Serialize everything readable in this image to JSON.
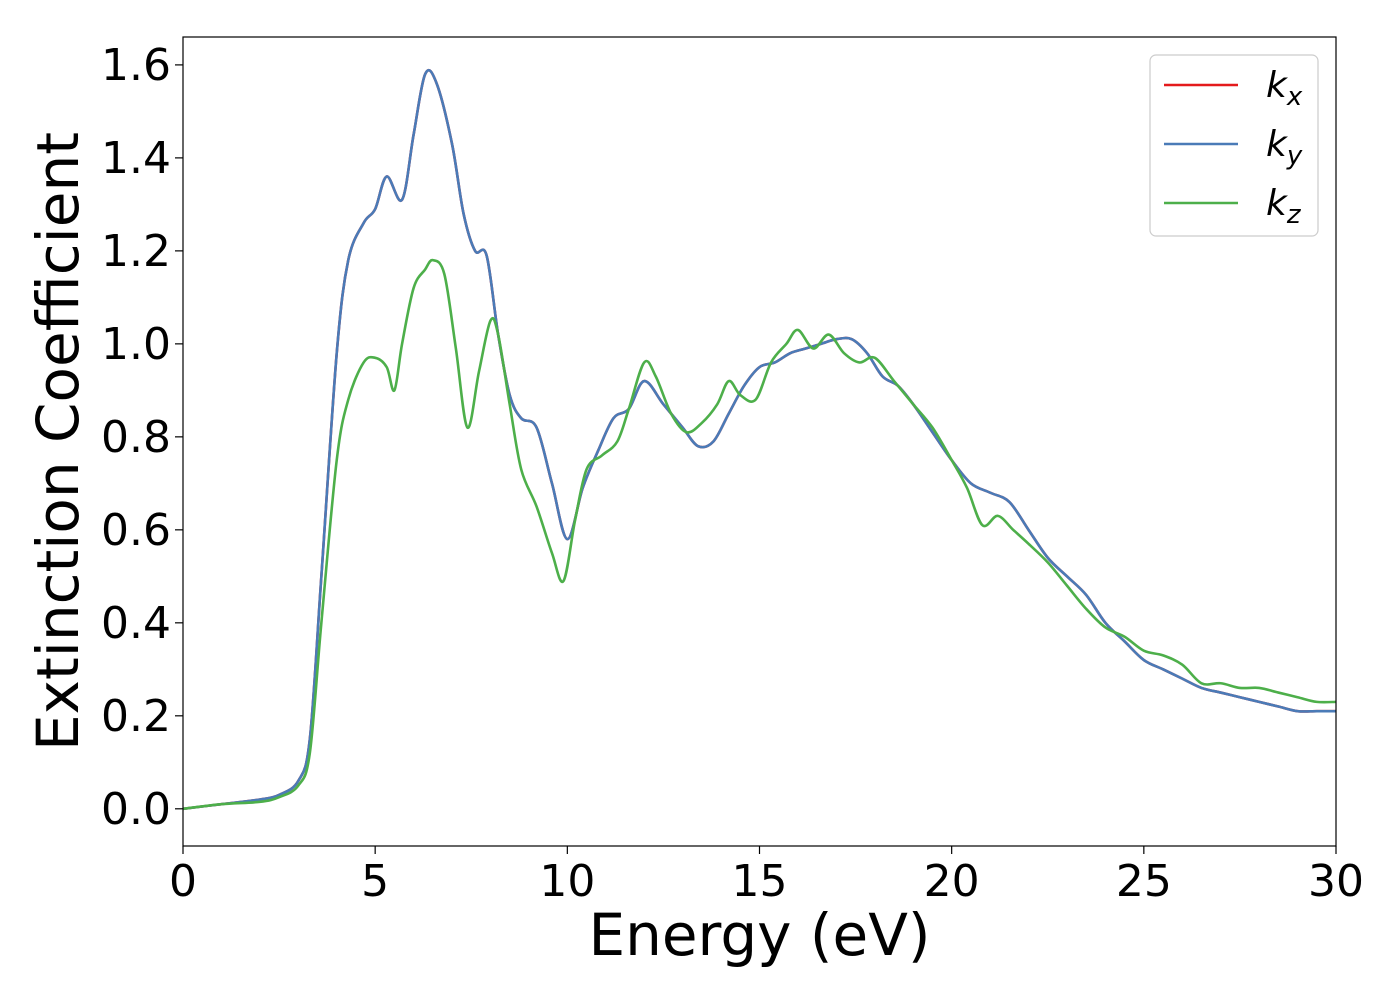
{
  "chart_data": {
    "type": "line",
    "title": "",
    "xlabel": "Energy (eV)",
    "ylabel": "Extinction Coefficient",
    "xlim": [
      0,
      30
    ],
    "ylim": [
      -0.08,
      1.66
    ],
    "xticks": [
      0,
      5,
      10,
      15,
      20,
      25,
      30
    ],
    "xtick_labels": [
      "0",
      "5",
      "10",
      "15",
      "20",
      "25",
      "30"
    ],
    "yticks": [
      0.0,
      0.2,
      0.4,
      0.6,
      0.8,
      1.0,
      1.2,
      1.4,
      1.6
    ],
    "ytick_labels": [
      "0.0",
      "0.2",
      "0.4",
      "0.6",
      "0.8",
      "1.0",
      "1.2",
      "1.4",
      "1.6"
    ],
    "grid": false,
    "legend": "top-right",
    "series": [
      {
        "name": "k",
        "subscript": "x",
        "color": "#e41a1c",
        "x": [
          0,
          1,
          2,
          2.5,
          3,
          3.3,
          3.6,
          4,
          4.3,
          4.7,
          5.0,
          5.3,
          5.7,
          6.0,
          6.3,
          6.6,
          7.0,
          7.3,
          7.6,
          7.9,
          8.2,
          8.5,
          8.8,
          9.2,
          9.6,
          10.0,
          10.4,
          10.8,
          11.2,
          11.6,
          12.0,
          12.5,
          13.0,
          13.4,
          13.8,
          14.2,
          14.6,
          15.0,
          15.4,
          15.8,
          16.2,
          16.6,
          17.0,
          17.4,
          17.8,
          18.2,
          18.6,
          19.0,
          19.5,
          20.0,
          20.5,
          21.0,
          21.5,
          22.0,
          22.5,
          23.0,
          23.5,
          24.0,
          24.5,
          25.0,
          25.5,
          26.0,
          26.5,
          27.0,
          27.5,
          28.0,
          28.5,
          29.0,
          29.5,
          30.0
        ],
        "y": [
          0.0,
          0.01,
          0.02,
          0.03,
          0.06,
          0.15,
          0.5,
          0.98,
          1.18,
          1.26,
          1.29,
          1.36,
          1.31,
          1.45,
          1.58,
          1.56,
          1.43,
          1.28,
          1.2,
          1.19,
          1.02,
          0.89,
          0.84,
          0.82,
          0.7,
          0.58,
          0.69,
          0.77,
          0.84,
          0.86,
          0.92,
          0.87,
          0.82,
          0.78,
          0.79,
          0.85,
          0.91,
          0.95,
          0.96,
          0.98,
          0.99,
          1.0,
          1.01,
          1.01,
          0.98,
          0.93,
          0.91,
          0.87,
          0.81,
          0.75,
          0.7,
          0.68,
          0.66,
          0.6,
          0.54,
          0.5,
          0.46,
          0.4,
          0.36,
          0.32,
          0.3,
          0.28,
          0.26,
          0.25,
          0.24,
          0.23,
          0.22,
          0.21,
          0.21,
          0.21
        ]
      },
      {
        "name": "k",
        "subscript": "y",
        "color": "#4a7bb7",
        "x": [
          0,
          1,
          2,
          2.5,
          3,
          3.3,
          3.6,
          4,
          4.3,
          4.7,
          5.0,
          5.3,
          5.7,
          6.0,
          6.3,
          6.6,
          7.0,
          7.3,
          7.6,
          7.9,
          8.2,
          8.5,
          8.8,
          9.2,
          9.6,
          10.0,
          10.4,
          10.8,
          11.2,
          11.6,
          12.0,
          12.5,
          13.0,
          13.4,
          13.8,
          14.2,
          14.6,
          15.0,
          15.4,
          15.8,
          16.2,
          16.6,
          17.0,
          17.4,
          17.8,
          18.2,
          18.6,
          19.0,
          19.5,
          20.0,
          20.5,
          21.0,
          21.5,
          22.0,
          22.5,
          23.0,
          23.5,
          24.0,
          24.5,
          25.0,
          25.5,
          26.0,
          26.5,
          27.0,
          27.5,
          28.0,
          28.5,
          29.0,
          29.5,
          30.0
        ],
        "y": [
          0.0,
          0.01,
          0.02,
          0.03,
          0.06,
          0.15,
          0.5,
          0.98,
          1.18,
          1.26,
          1.29,
          1.36,
          1.31,
          1.45,
          1.58,
          1.56,
          1.43,
          1.28,
          1.2,
          1.19,
          1.02,
          0.89,
          0.84,
          0.82,
          0.7,
          0.58,
          0.69,
          0.77,
          0.84,
          0.86,
          0.92,
          0.87,
          0.82,
          0.78,
          0.79,
          0.85,
          0.91,
          0.95,
          0.96,
          0.98,
          0.99,
          1.0,
          1.01,
          1.01,
          0.98,
          0.93,
          0.91,
          0.87,
          0.81,
          0.75,
          0.7,
          0.68,
          0.66,
          0.6,
          0.54,
          0.5,
          0.46,
          0.4,
          0.36,
          0.32,
          0.3,
          0.28,
          0.26,
          0.25,
          0.24,
          0.23,
          0.22,
          0.21,
          0.21,
          0.21
        ]
      },
      {
        "name": "k",
        "subscript": "z",
        "color": "#4daf4a",
        "x": [
          0,
          1,
          2,
          2.5,
          3,
          3.3,
          3.6,
          4,
          4.3,
          4.7,
          5.0,
          5.3,
          5.5,
          5.7,
          6.0,
          6.3,
          6.5,
          6.8,
          7.1,
          7.4,
          7.7,
          8.0,
          8.2,
          8.5,
          8.8,
          9.2,
          9.6,
          9.9,
          10.2,
          10.5,
          10.9,
          11.3,
          11.6,
          12.0,
          12.3,
          12.7,
          13.1,
          13.5,
          13.9,
          14.2,
          14.5,
          14.9,
          15.3,
          15.7,
          16.0,
          16.4,
          16.8,
          17.2,
          17.6,
          18.0,
          18.5,
          19.0,
          19.5,
          20.0,
          20.4,
          20.8,
          21.2,
          21.6,
          22.0,
          22.5,
          23.0,
          23.5,
          24.0,
          24.5,
          25.0,
          25.5,
          26.0,
          26.5,
          27.0,
          27.5,
          28.0,
          28.5,
          29.0,
          29.5,
          30.0
        ],
        "y": [
          0.0,
          0.01,
          0.015,
          0.025,
          0.05,
          0.12,
          0.4,
          0.75,
          0.88,
          0.96,
          0.97,
          0.95,
          0.9,
          1.0,
          1.12,
          1.16,
          1.18,
          1.15,
          0.99,
          0.82,
          0.94,
          1.05,
          1.02,
          0.87,
          0.73,
          0.65,
          0.55,
          0.49,
          0.62,
          0.73,
          0.76,
          0.79,
          0.86,
          0.96,
          0.93,
          0.85,
          0.81,
          0.83,
          0.87,
          0.92,
          0.89,
          0.88,
          0.96,
          1.0,
          1.03,
          0.99,
          1.02,
          0.98,
          0.96,
          0.97,
          0.92,
          0.87,
          0.82,
          0.75,
          0.69,
          0.61,
          0.63,
          0.6,
          0.57,
          0.53,
          0.48,
          0.43,
          0.39,
          0.37,
          0.34,
          0.33,
          0.31,
          0.27,
          0.27,
          0.26,
          0.26,
          0.25,
          0.24,
          0.23,
          0.23
        ]
      }
    ]
  }
}
